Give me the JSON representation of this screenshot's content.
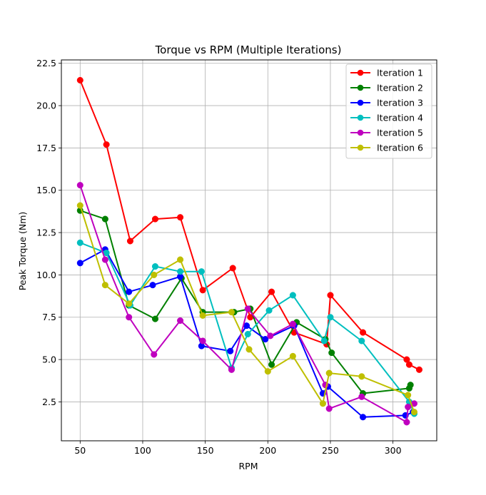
{
  "chart_data": {
    "type": "line",
    "title": "Torque vs RPM (Multiple Iterations)",
    "xlabel": "RPM",
    "ylabel": "Peak Torque (Nm)",
    "xlim": [
      35,
      335
    ],
    "ylim": [
      0.2,
      22.7
    ],
    "xticks": [
      50,
      100,
      150,
      200,
      250,
      300
    ],
    "yticks": [
      2.5,
      5.0,
      7.5,
      10.0,
      12.5,
      15.0,
      17.5,
      20.0,
      22.5
    ],
    "xtick_labels": [
      "50",
      "100",
      "150",
      "200",
      "250",
      "300"
    ],
    "ytick_labels": [
      "2.5",
      "5.0",
      "7.5",
      "10.0",
      "12.5",
      "15.0",
      "17.5",
      "20.0",
      "22.5"
    ],
    "grid": true,
    "legend_position": "top-right",
    "series": [
      {
        "name": "Iteration 1",
        "color": "#ff0000",
        "x": [
          50,
          71,
          90,
          110,
          130,
          148,
          172,
          186,
          203,
          221,
          247,
          250,
          276,
          311,
          313,
          321
        ],
        "y": [
          21.5,
          17.7,
          12.0,
          13.3,
          13.4,
          9.1,
          10.4,
          7.5,
          9.0,
          6.6,
          5.9,
          8.8,
          6.6,
          5.0,
          4.7,
          4.4
        ]
      },
      {
        "name": "Iteration 2",
        "color": "#008000",
        "x": [
          50,
          70,
          89,
          110,
          131,
          148,
          173,
          186,
          203,
          223,
          246,
          251,
          276,
          313,
          314
        ],
        "y": [
          13.8,
          13.3,
          8.2,
          7.4,
          9.8,
          7.8,
          7.8,
          8.0,
          4.7,
          7.2,
          6.2,
          5.4,
          3.0,
          3.3,
          3.5
        ]
      },
      {
        "name": "Iteration 3",
        "color": "#0000ff",
        "x": [
          50,
          70,
          89,
          108,
          130,
          147,
          170,
          183,
          198,
          221,
          244,
          248,
          276,
          310,
          316
        ],
        "y": [
          10.7,
          11.5,
          9.0,
          9.4,
          9.9,
          5.8,
          5.5,
          7.0,
          6.2,
          7.0,
          3.0,
          3.4,
          1.6,
          1.7,
          1.9
        ]
      },
      {
        "name": "Iteration 4",
        "color": "#00bfbf",
        "x": [
          50,
          71,
          90,
          110,
          130,
          147,
          171,
          184,
          201,
          220,
          245,
          250,
          275,
          313,
          317
        ],
        "y": [
          11.9,
          11.3,
          8.2,
          10.5,
          10.2,
          10.2,
          4.5,
          6.5,
          7.9,
          8.8,
          6.1,
          7.5,
          6.1,
          2.5,
          1.8
        ]
      },
      {
        "name": "Iteration 5",
        "color": "#bf00bf",
        "x": [
          50,
          70,
          89,
          109,
          130,
          148,
          171,
          184,
          202,
          220,
          246,
          249,
          275,
          311,
          312,
          317
        ],
        "y": [
          15.3,
          10.9,
          7.5,
          5.3,
          7.3,
          6.1,
          4.4,
          8.0,
          6.4,
          7.1,
          3.5,
          2.1,
          2.8,
          1.3,
          2.2,
          2.4
        ]
      },
      {
        "name": "Iteration 6",
        "color": "#bfbf00",
        "x": [
          50,
          70,
          89,
          109,
          130,
          148,
          171,
          185,
          200,
          220,
          244,
          249,
          275,
          312,
          317
        ],
        "y": [
          14.1,
          9.4,
          8.3,
          10.0,
          10.9,
          7.6,
          7.8,
          5.6,
          4.3,
          5.2,
          2.4,
          4.2,
          4.0,
          2.9,
          1.9
        ]
      }
    ]
  }
}
